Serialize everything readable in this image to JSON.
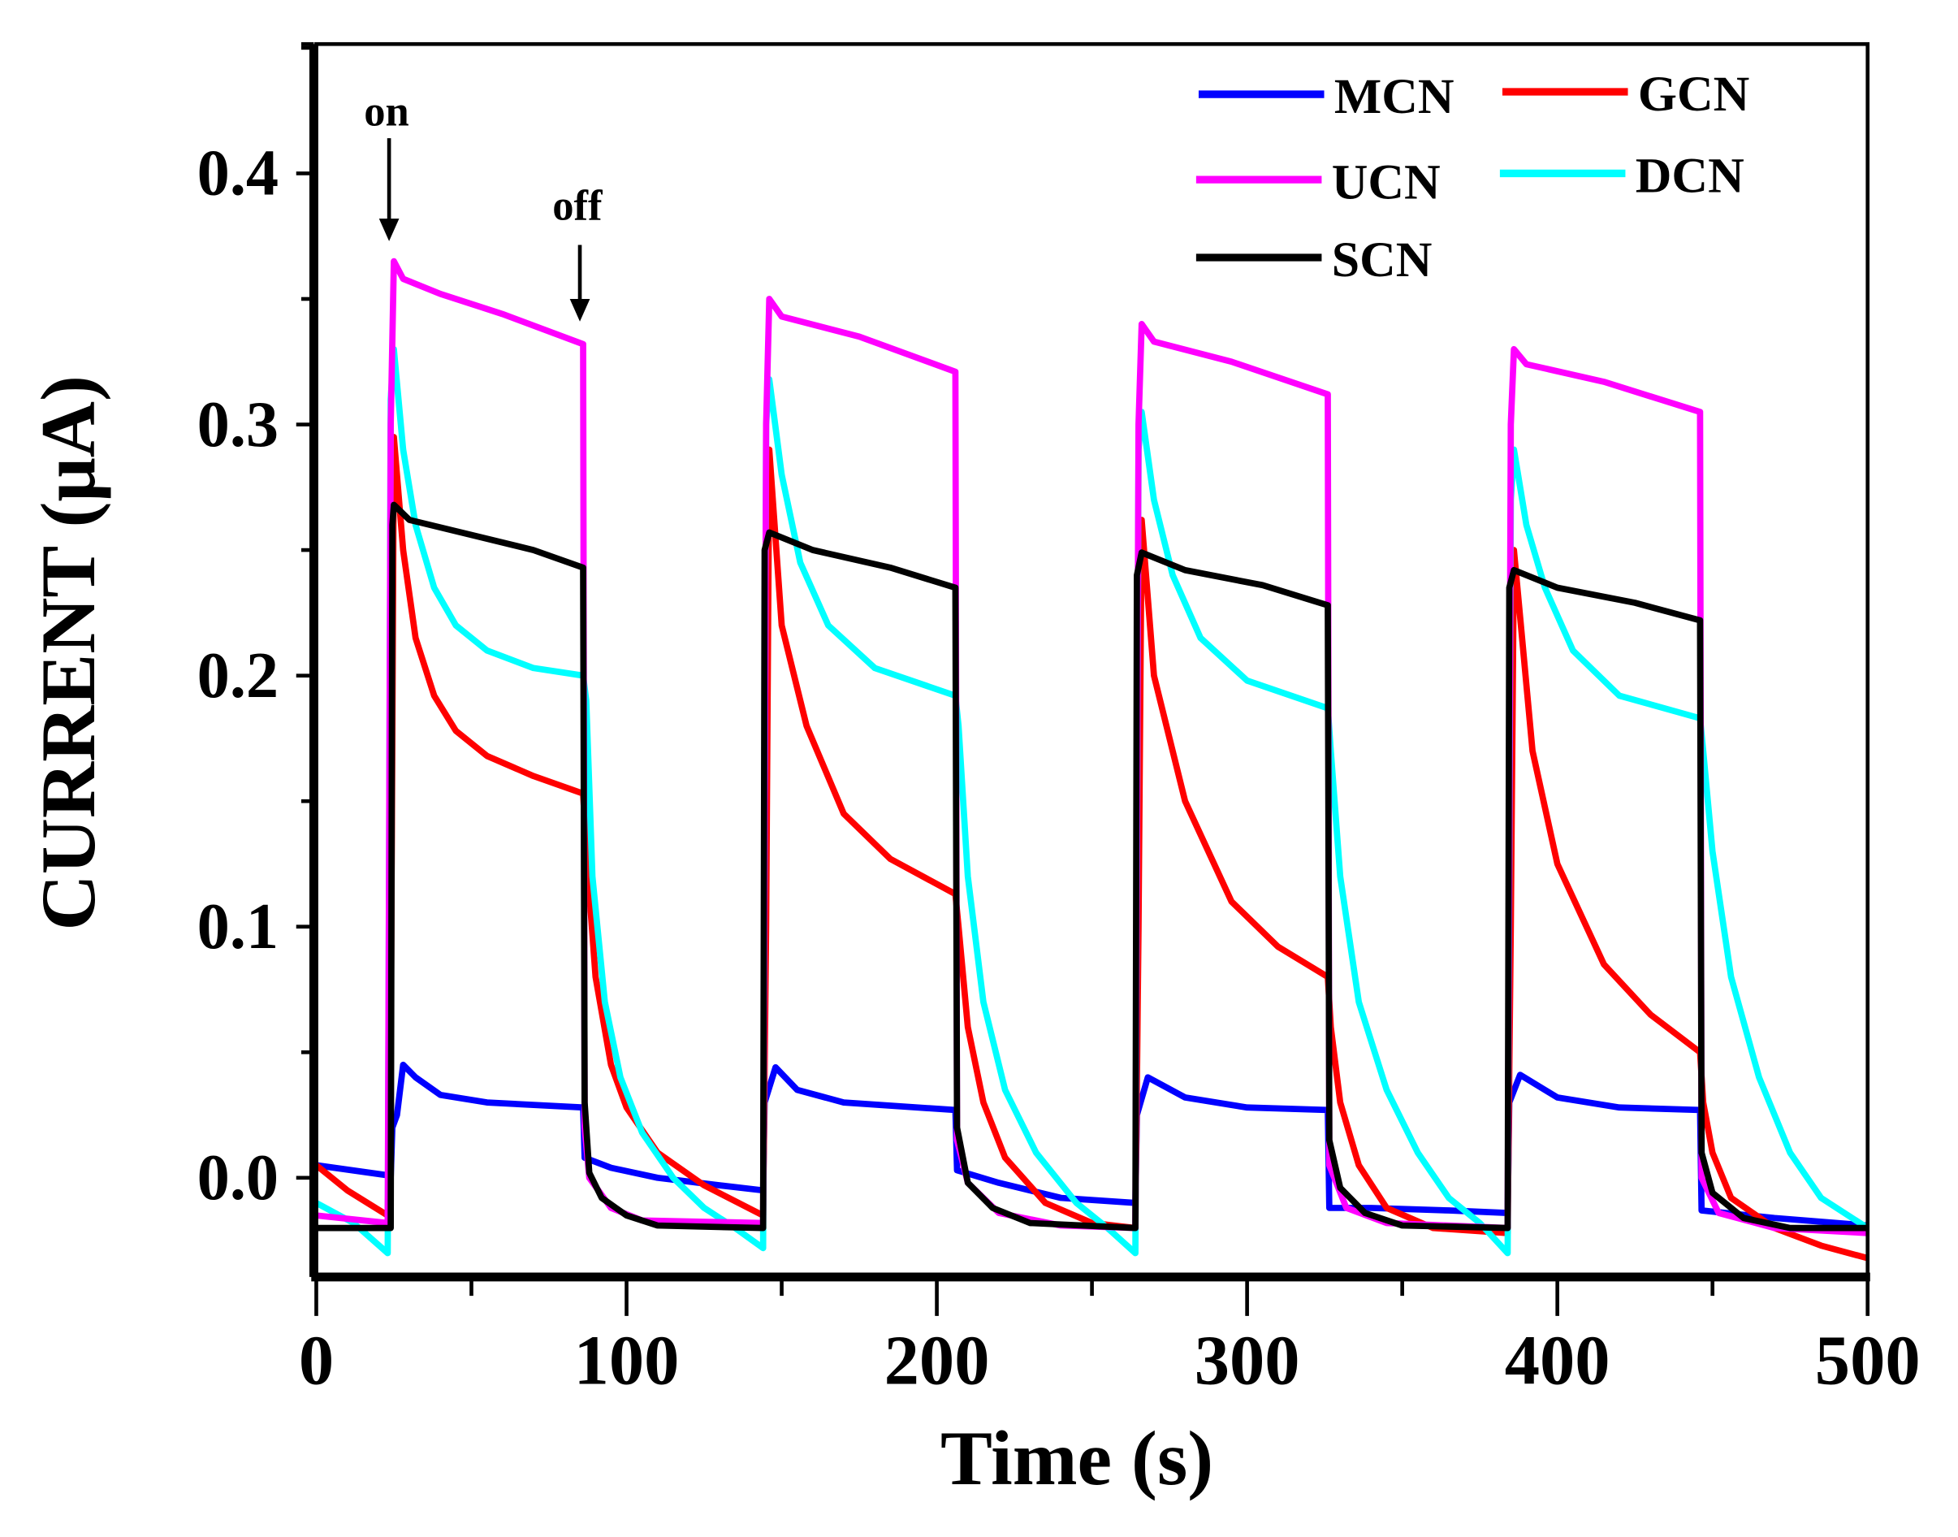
{
  "chart_data": {
    "type": "line",
    "title": "",
    "xlabel": "Time (s)",
    "ylabel": "CURRENT (μA)",
    "xlim": [
      0,
      500
    ],
    "ylim": [
      -0.04,
      0.45
    ],
    "xticks": [
      "0",
      "100",
      "200",
      "300",
      "400",
      "500"
    ],
    "xtick_values": [
      0,
      100,
      200,
      300,
      400,
      500
    ],
    "yticks": [
      "0.0",
      "0.1",
      "0.2",
      "0.3",
      "0.4"
    ],
    "ytick_values": [
      0,
      0.1,
      0.2,
      0.3,
      0.4
    ],
    "grid": false,
    "legend_position": "top-right",
    "annotations": [
      {
        "text": "on",
        "x": 24,
        "arrow_to": 0.37
      },
      {
        "text": "off",
        "x": 85,
        "arrow_to": 0.338
      }
    ],
    "series": [
      {
        "name": "MCN",
        "color": "#0000ff",
        "points": [
          [
            0,
            0.005
          ],
          [
            23,
            0.001
          ],
          [
            24,
            0.0
          ],
          [
            24.5,
            0.02
          ],
          [
            26,
            0.025
          ],
          [
            28,
            0.045
          ],
          [
            32,
            0.04
          ],
          [
            40,
            0.033
          ],
          [
            55,
            0.03
          ],
          [
            86,
            0.028
          ],
          [
            86.5,
            0.008
          ],
          [
            95,
            0.004
          ],
          [
            110,
            0.0
          ],
          [
            130,
            -0.003
          ],
          [
            144,
            -0.005
          ],
          [
            144.5,
            0.03
          ],
          [
            148,
            0.044
          ],
          [
            155,
            0.035
          ],
          [
            170,
            0.03
          ],
          [
            206,
            0.027
          ],
          [
            206.5,
            0.003
          ],
          [
            220,
            -0.002
          ],
          [
            240,
            -0.008
          ],
          [
            264,
            -0.01
          ],
          [
            264.5,
            0.025
          ],
          [
            268,
            0.04
          ],
          [
            280,
            0.032
          ],
          [
            300,
            0.028
          ],
          [
            326,
            0.027
          ],
          [
            326.5,
            -0.012
          ],
          [
            340,
            -0.012
          ],
          [
            365,
            -0.013
          ],
          [
            384,
            -0.014
          ],
          [
            384.5,
            0.03
          ],
          [
            388,
            0.041
          ],
          [
            400,
            0.032
          ],
          [
            420,
            0.028
          ],
          [
            446,
            0.027
          ],
          [
            446.5,
            -0.013
          ],
          [
            470,
            -0.016
          ],
          [
            500,
            -0.019
          ]
        ]
      },
      {
        "name": "GCN",
        "color": "#ff0000",
        "points": [
          [
            0,
            0.005
          ],
          [
            10,
            -0.005
          ],
          [
            23,
            -0.015
          ],
          [
            24,
            0.05
          ],
          [
            25,
            0.295
          ],
          [
            28,
            0.25
          ],
          [
            32,
            0.215
          ],
          [
            38,
            0.192
          ],
          [
            45,
            0.178
          ],
          [
            55,
            0.168
          ],
          [
            70,
            0.16
          ],
          [
            86,
            0.153
          ],
          [
            87,
            0.13
          ],
          [
            90,
            0.08
          ],
          [
            95,
            0.045
          ],
          [
            100,
            0.028
          ],
          [
            110,
            0.01
          ],
          [
            125,
            -0.003
          ],
          [
            144,
            -0.015
          ],
          [
            145,
            0.1
          ],
          [
            146,
            0.29
          ],
          [
            150,
            0.22
          ],
          [
            158,
            0.18
          ],
          [
            170,
            0.145
          ],
          [
            185,
            0.127
          ],
          [
            206,
            0.113
          ],
          [
            207,
            0.1
          ],
          [
            210,
            0.06
          ],
          [
            215,
            0.03
          ],
          [
            222,
            0.008
          ],
          [
            235,
            -0.01
          ],
          [
            250,
            -0.018
          ],
          [
            264,
            -0.02
          ],
          [
            265,
            0.1
          ],
          [
            266,
            0.262
          ],
          [
            270,
            0.2
          ],
          [
            280,
            0.15
          ],
          [
            295,
            0.11
          ],
          [
            310,
            0.092
          ],
          [
            326,
            0.08
          ],
          [
            327,
            0.06
          ],
          [
            330,
            0.03
          ],
          [
            336,
            0.005
          ],
          [
            345,
            -0.012
          ],
          [
            360,
            -0.02
          ],
          [
            384,
            -0.022
          ],
          [
            385,
            0.1
          ],
          [
            386,
            0.25
          ],
          [
            392,
            0.17
          ],
          [
            400,
            0.125
          ],
          [
            415,
            0.085
          ],
          [
            430,
            0.065
          ],
          [
            446,
            0.05
          ],
          [
            447,
            0.03
          ],
          [
            450,
            0.01
          ],
          [
            456,
            -0.008
          ],
          [
            470,
            -0.02
          ],
          [
            485,
            -0.027
          ],
          [
            500,
            -0.032
          ]
        ]
      },
      {
        "name": "UCN",
        "color": "#ff00ff",
        "points": [
          [
            0,
            -0.015
          ],
          [
            23,
            -0.018
          ],
          [
            24,
            0.3
          ],
          [
            25,
            0.365
          ],
          [
            28,
            0.358
          ],
          [
            40,
            0.352
          ],
          [
            60,
            0.344
          ],
          [
            86,
            0.332
          ],
          [
            86.5,
            0.02
          ],
          [
            88,
            0.0
          ],
          [
            95,
            -0.012
          ],
          [
            105,
            -0.017
          ],
          [
            144,
            -0.018
          ],
          [
            145,
            0.3
          ],
          [
            146,
            0.35
          ],
          [
            150,
            0.343
          ],
          [
            175,
            0.335
          ],
          [
            206,
            0.321
          ],
          [
            206.5,
            0.015
          ],
          [
            210,
            -0.002
          ],
          [
            220,
            -0.014
          ],
          [
            240,
            -0.019
          ],
          [
            264,
            -0.02
          ],
          [
            265,
            0.3
          ],
          [
            266,
            0.34
          ],
          [
            270,
            0.333
          ],
          [
            295,
            0.325
          ],
          [
            326,
            0.312
          ],
          [
            326.5,
            0.005
          ],
          [
            332,
            -0.012
          ],
          [
            345,
            -0.018
          ],
          [
            384,
            -0.02
          ],
          [
            385,
            0.3
          ],
          [
            386,
            0.33
          ],
          [
            390,
            0.324
          ],
          [
            415,
            0.317
          ],
          [
            446,
            0.305
          ],
          [
            446.5,
            0.0
          ],
          [
            452,
            -0.014
          ],
          [
            470,
            -0.02
          ],
          [
            500,
            -0.022
          ]
        ]
      },
      {
        "name": "DCN",
        "color": "#00ffff",
        "points": [
          [
            0,
            -0.01
          ],
          [
            12,
            -0.018
          ],
          [
            23,
            -0.03
          ],
          [
            24,
            0.31
          ],
          [
            25,
            0.33
          ],
          [
            28,
            0.29
          ],
          [
            32,
            0.26
          ],
          [
            38,
            0.235
          ],
          [
            45,
            0.22
          ],
          [
            55,
            0.21
          ],
          [
            70,
            0.203
          ],
          [
            86,
            0.2
          ],
          [
            87,
            0.19
          ],
          [
            89,
            0.12
          ],
          [
            93,
            0.07
          ],
          [
            98,
            0.04
          ],
          [
            105,
            0.018
          ],
          [
            115,
            0.0
          ],
          [
            125,
            -0.012
          ],
          [
            135,
            -0.02
          ],
          [
            144,
            -0.028
          ],
          [
            145,
            0.3
          ],
          [
            146,
            0.318
          ],
          [
            150,
            0.28
          ],
          [
            156,
            0.245
          ],
          [
            165,
            0.22
          ],
          [
            180,
            0.203
          ],
          [
            206,
            0.192
          ],
          [
            207,
            0.18
          ],
          [
            210,
            0.12
          ],
          [
            215,
            0.07
          ],
          [
            222,
            0.035
          ],
          [
            232,
            0.01
          ],
          [
            245,
            -0.01
          ],
          [
            255,
            -0.02
          ],
          [
            264,
            -0.03
          ],
          [
            265,
            0.29
          ],
          [
            266,
            0.305
          ],
          [
            270,
            0.27
          ],
          [
            276,
            0.24
          ],
          [
            285,
            0.215
          ],
          [
            300,
            0.198
          ],
          [
            326,
            0.187
          ],
          [
            327,
            0.17
          ],
          [
            330,
            0.12
          ],
          [
            336,
            0.07
          ],
          [
            345,
            0.035
          ],
          [
            355,
            0.01
          ],
          [
            365,
            -0.008
          ],
          [
            375,
            -0.018
          ],
          [
            384,
            -0.03
          ],
          [
            385,
            0.27
          ],
          [
            386,
            0.29
          ],
          [
            390,
            0.26
          ],
          [
            396,
            0.235
          ],
          [
            405,
            0.21
          ],
          [
            420,
            0.192
          ],
          [
            446,
            0.183
          ],
          [
            447,
            0.17
          ],
          [
            450,
            0.13
          ],
          [
            456,
            0.08
          ],
          [
            465,
            0.04
          ],
          [
            475,
            0.01
          ],
          [
            485,
            -0.008
          ],
          [
            500,
            -0.02
          ]
        ]
      },
      {
        "name": "SCN",
        "color": "#000000",
        "points": [
          [
            0,
            -0.02
          ],
          [
            23,
            -0.02
          ],
          [
            24,
            -0.02
          ],
          [
            24.5,
            0.26
          ],
          [
            25,
            0.268
          ],
          [
            30,
            0.262
          ],
          [
            50,
            0.256
          ],
          [
            70,
            0.25
          ],
          [
            86,
            0.243
          ],
          [
            86.5,
            0.03
          ],
          [
            88,
            0.002
          ],
          [
            92,
            -0.008
          ],
          [
            100,
            -0.015
          ],
          [
            110,
            -0.019
          ],
          [
            144,
            -0.02
          ],
          [
            144.5,
            0.25
          ],
          [
            146,
            0.257
          ],
          [
            160,
            0.25
          ],
          [
            185,
            0.243
          ],
          [
            206,
            0.235
          ],
          [
            206.5,
            0.02
          ],
          [
            210,
            -0.002
          ],
          [
            218,
            -0.012
          ],
          [
            230,
            -0.018
          ],
          [
            264,
            -0.02
          ],
          [
            264.5,
            0.24
          ],
          [
            266,
            0.249
          ],
          [
            280,
            0.242
          ],
          [
            305,
            0.236
          ],
          [
            326,
            0.228
          ],
          [
            326.5,
            0.015
          ],
          [
            330,
            -0.004
          ],
          [
            338,
            -0.014
          ],
          [
            350,
            -0.019
          ],
          [
            384,
            -0.02
          ],
          [
            384.5,
            0.235
          ],
          [
            386,
            0.242
          ],
          [
            400,
            0.235
          ],
          [
            425,
            0.229
          ],
          [
            446,
            0.222
          ],
          [
            446.5,
            0.01
          ],
          [
            450,
            -0.006
          ],
          [
            460,
            -0.016
          ],
          [
            475,
            -0.02
          ],
          [
            500,
            -0.02
          ]
        ]
      }
    ]
  }
}
